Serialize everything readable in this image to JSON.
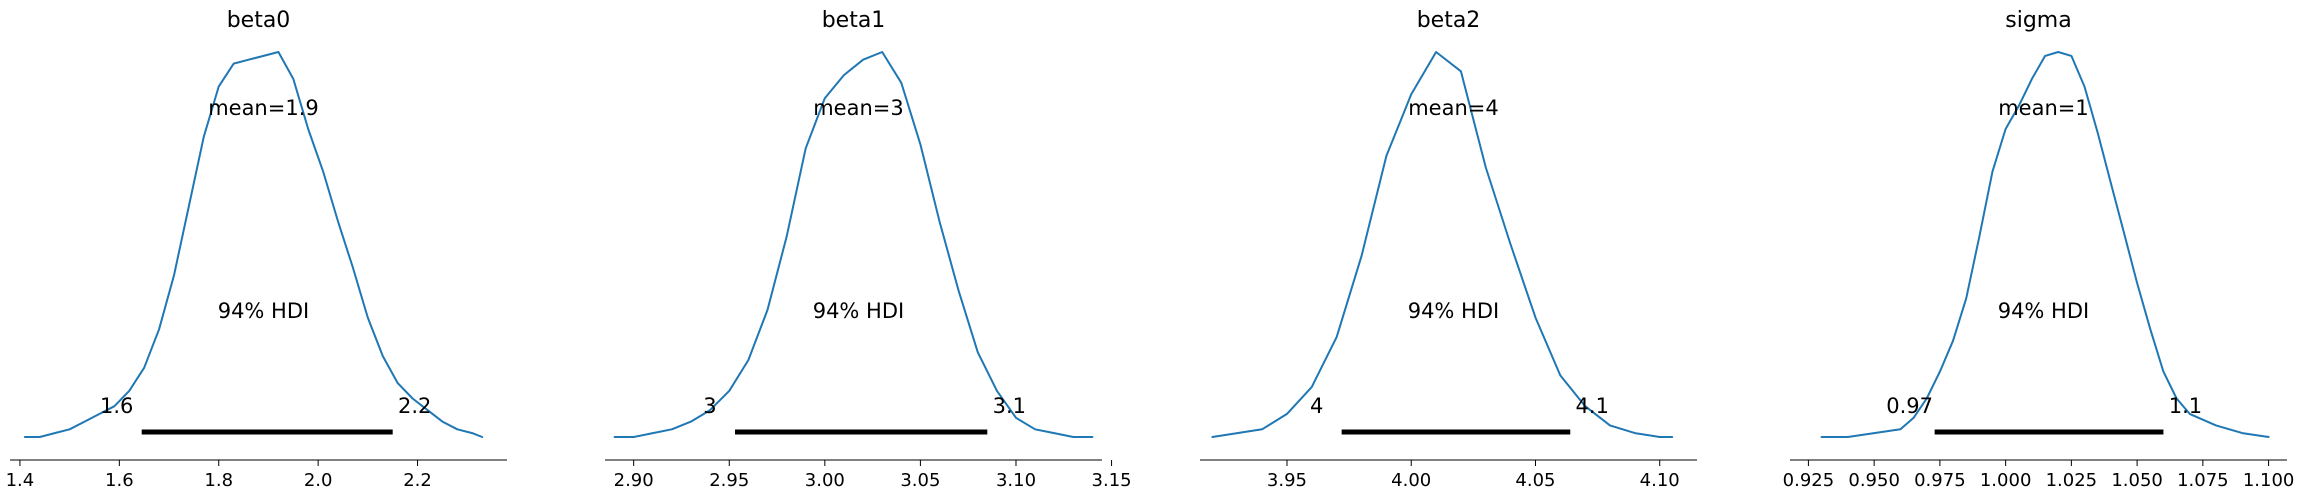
{
  "chart_data": [
    {
      "type": "line",
      "title": "beta0",
      "xlim": [
        1.38,
        2.38
      ],
      "ticks": [
        1.4,
        1.6,
        1.8,
        2.0,
        2.2
      ],
      "tick_labels": [
        "1.4",
        "1.6",
        "1.8",
        "2.0",
        "2.2"
      ],
      "mean_label": "mean=1.9",
      "hdi_label": "94% HDI",
      "hdi": [
        1.645,
        2.15
      ],
      "hdi_labels": [
        "1.6",
        "2.2"
      ],
      "density": {
        "x": [
          1.41,
          1.44,
          1.47,
          1.5,
          1.53,
          1.56,
          1.59,
          1.62,
          1.65,
          1.68,
          1.71,
          1.74,
          1.77,
          1.8,
          1.83,
          1.86,
          1.89,
          1.92,
          1.95,
          1.98,
          2.01,
          2.04,
          2.07,
          2.1,
          2.13,
          2.16,
          2.19,
          2.22,
          2.25,
          2.28,
          2.31,
          2.33
        ],
        "y": [
          0.0,
          0.0,
          0.01,
          0.02,
          0.04,
          0.06,
          0.08,
          0.12,
          0.18,
          0.28,
          0.42,
          0.6,
          0.78,
          0.91,
          0.97,
          0.98,
          0.99,
          1.0,
          0.93,
          0.8,
          0.69,
          0.56,
          0.44,
          0.31,
          0.21,
          0.14,
          0.1,
          0.07,
          0.04,
          0.02,
          0.01,
          0.0
        ]
      }
    },
    {
      "type": "line",
      "title": "beta1",
      "xlim": [
        2.885,
        3.145
      ],
      "ticks": [
        2.9,
        2.95,
        3.0,
        3.05,
        3.1,
        3.15
      ],
      "tick_labels": [
        "2.90",
        "2.95",
        "3.00",
        "3.05",
        "3.10",
        "3.15"
      ],
      "mean_label": "mean=3",
      "hdi_label": "94% HDI",
      "hdi": [
        2.953,
        3.085
      ],
      "hdi_labels": [
        "3",
        "3.1"
      ],
      "density": {
        "x": [
          2.89,
          2.9,
          2.91,
          2.92,
          2.93,
          2.94,
          2.95,
          2.96,
          2.97,
          2.98,
          2.99,
          3.0,
          3.01,
          3.02,
          3.03,
          3.04,
          3.05,
          3.06,
          3.07,
          3.08,
          3.09,
          3.1,
          3.11,
          3.12,
          3.13,
          3.14
        ],
        "y": [
          0.0,
          0.0,
          0.01,
          0.02,
          0.04,
          0.07,
          0.12,
          0.2,
          0.33,
          0.52,
          0.75,
          0.88,
          0.94,
          0.98,
          1.0,
          0.92,
          0.76,
          0.56,
          0.38,
          0.22,
          0.12,
          0.05,
          0.02,
          0.01,
          0.0,
          0.0
        ]
      }
    },
    {
      "type": "line",
      "title": "beta2",
      "xlim": [
        3.915,
        4.115
      ],
      "ticks": [
        3.95,
        4.0,
        4.05,
        4.1
      ],
      "tick_labels": [
        "3.95",
        "4.00",
        "4.05",
        "4.10"
      ],
      "mean_label": "mean=4",
      "hdi_label": "94% HDI",
      "hdi": [
        3.972,
        4.064
      ],
      "hdi_labels": [
        "4",
        "4.1"
      ],
      "density": {
        "x": [
          3.92,
          3.93,
          3.94,
          3.95,
          3.96,
          3.97,
          3.98,
          3.99,
          4.0,
          4.01,
          4.02,
          4.03,
          4.04,
          4.05,
          4.06,
          4.07,
          4.08,
          4.09,
          4.1,
          4.105
        ],
        "y": [
          0.0,
          0.01,
          0.02,
          0.06,
          0.13,
          0.26,
          0.47,
          0.73,
          0.89,
          1.0,
          0.95,
          0.7,
          0.5,
          0.31,
          0.16,
          0.08,
          0.03,
          0.01,
          0.0,
          0.0
        ]
      }
    },
    {
      "type": "line",
      "title": "sigma",
      "xlim": [
        0.918,
        1.107
      ],
      "ticks": [
        0.925,
        0.95,
        0.975,
        1.0,
        1.025,
        1.05,
        1.075,
        1.1
      ],
      "tick_labels": [
        "0.925",
        "0.950",
        "0.975",
        "1.000",
        "1.025",
        "1.050",
        "1.075",
        "1.100"
      ],
      "mean_label": "mean=1",
      "hdi_label": "94% HDI",
      "hdi": [
        0.973,
        1.06
      ],
      "hdi_labels": [
        "0.97",
        "1.1"
      ],
      "density": {
        "x": [
          0.93,
          0.94,
          0.95,
          0.96,
          0.965,
          0.97,
          0.975,
          0.98,
          0.985,
          0.99,
          0.995,
          1.0,
          1.005,
          1.01,
          1.015,
          1.02,
          1.025,
          1.03,
          1.035,
          1.04,
          1.045,
          1.05,
          1.055,
          1.06,
          1.065,
          1.07,
          1.08,
          1.09,
          1.1
        ],
        "y": [
          0.0,
          0.0,
          0.01,
          0.02,
          0.05,
          0.1,
          0.17,
          0.25,
          0.36,
          0.52,
          0.69,
          0.8,
          0.86,
          0.93,
          0.99,
          1.0,
          0.99,
          0.91,
          0.79,
          0.66,
          0.53,
          0.4,
          0.28,
          0.17,
          0.1,
          0.06,
          0.03,
          0.01,
          0.0
        ]
      }
    }
  ]
}
